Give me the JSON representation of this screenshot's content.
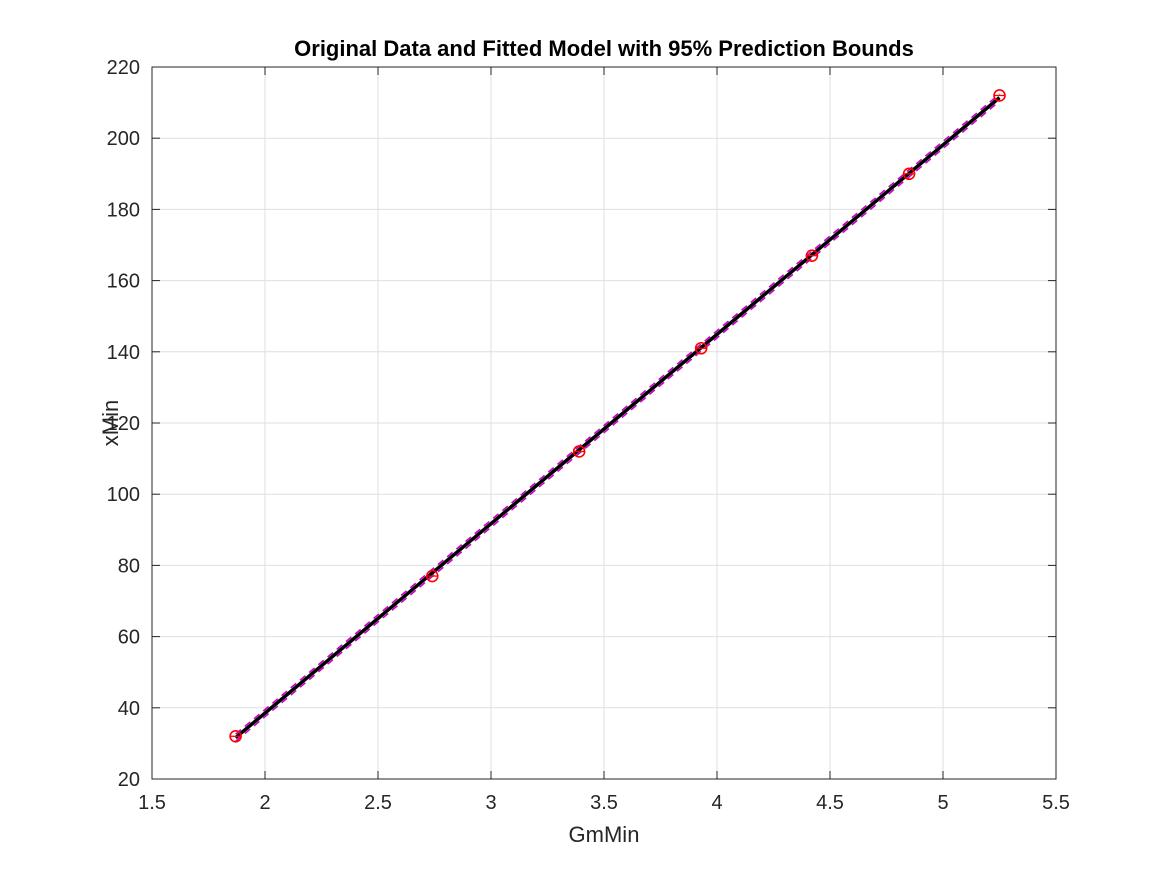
{
  "figure": {
    "background": "#ffffff",
    "axes_background": "#ffffff"
  },
  "chart_data": {
    "type": "scatter",
    "title": "Original Data and Fitted Model with 95% Prediction Bounds",
    "xlabel": "GmMin",
    "ylabel": "xMin",
    "xlim": [
      1.5,
      5.5
    ],
    "ylim": [
      20,
      220
    ],
    "xticks": [
      1.5,
      2,
      2.5,
      3,
      3.5,
      4,
      4.5,
      5,
      5.5
    ],
    "yticks": [
      20,
      40,
      60,
      80,
      100,
      120,
      140,
      160,
      180,
      200,
      220
    ],
    "xtick_labels": [
      "1.5",
      "2",
      "2.5",
      "3",
      "3.5",
      "4",
      "4.5",
      "5",
      "5.5"
    ],
    "ytick_labels": [
      "20",
      "40",
      "60",
      "80",
      "100",
      "120",
      "140",
      "160",
      "180",
      "200",
      "220"
    ],
    "grid": true,
    "series": [
      {
        "kind": "points",
        "marker": "circle",
        "color": "#ff0000",
        "x": [
          1.87,
          2.74,
          3.39,
          3.93,
          4.42,
          4.85,
          5.25
        ],
        "y": [
          32,
          77,
          112,
          141,
          167,
          190,
          212
        ]
      },
      {
        "kind": "fit-line",
        "color": "#000000",
        "x": [
          1.87,
          5.25
        ],
        "y": [
          31.6,
          211.4
        ]
      },
      {
        "kind": "prediction-bound",
        "style": "dashed",
        "color": "#cc00cc",
        "x": [
          1.87,
          5.25
        ],
        "y": [
          32.6,
          212.4
        ]
      },
      {
        "kind": "prediction-bound",
        "style": "dashed",
        "color": "#cc00cc",
        "x": [
          1.87,
          5.25
        ],
        "y": [
          30.6,
          210.4
        ]
      }
    ]
  }
}
